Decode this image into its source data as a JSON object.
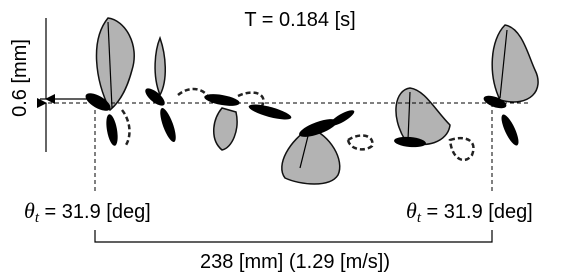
{
  "period": "T = 0.184 [s]",
  "amplitude": "0.6 [mm]",
  "angle_left": {
    "symbol": "θ",
    "subscript": "t",
    "text": " = 31.9 [deg]"
  },
  "angle_right": {
    "symbol": "θ",
    "subscript": "t",
    "text": " = 31.9 [deg]"
  },
  "distance": "238 [mm] (1.29 [m/s])"
}
